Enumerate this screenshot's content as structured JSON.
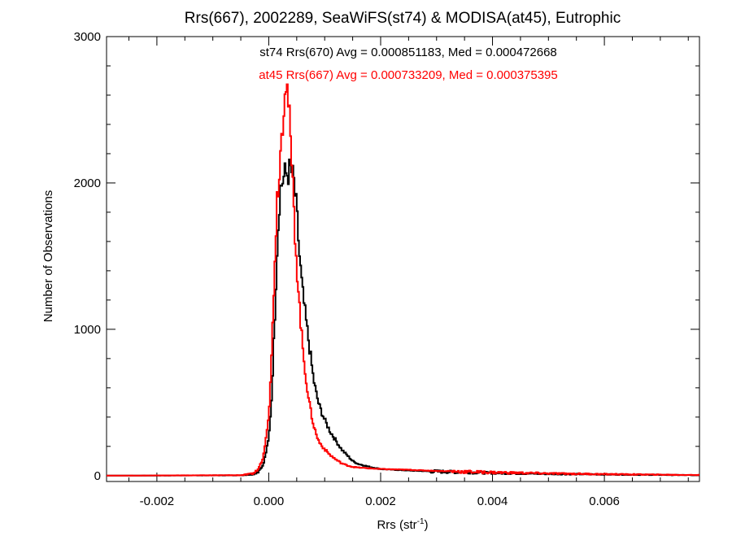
{
  "chart_data": {
    "type": "line",
    "style": "step-histogram",
    "title": "Rrs(667), 2002289, SeaWiFS(st74) & MODISA(at45), Eutrophic",
    "xlabel": "Rrs (str",
    "xlabel_superscript": "-1",
    "xlabel_suffix": ")",
    "ylabel": "Number of Observations",
    "xlim": [
      -0.0029,
      0.0077
    ],
    "ylim": [
      -40,
      3000
    ],
    "x_ticks": [
      {
        "value": -0.002,
        "label": "-0.002"
      },
      {
        "value": 0.0,
        "label": "0.000"
      },
      {
        "value": 0.002,
        "label": "0.002"
      },
      {
        "value": 0.004,
        "label": "0.004"
      },
      {
        "value": 0.006,
        "label": "0.006"
      }
    ],
    "y_ticks": [
      {
        "value": 0,
        "label": "0"
      },
      {
        "value": 1000,
        "label": "1000"
      },
      {
        "value": 2000,
        "label": "2000"
      },
      {
        "value": 3000,
        "label": "3000"
      }
    ],
    "grid": false,
    "legend_position": "top-center",
    "series": [
      {
        "name": "st74",
        "color": "#000000",
        "stats_text": "st74 Rrs(670) Avg = 0.000851183, Med = 0.000472668",
        "x": [
          -0.0029,
          -0.0005,
          -0.0003,
          -0.0002,
          -0.0001,
          0.0,
          5e-05,
          0.0001,
          0.00015,
          0.0002,
          0.00025,
          0.0003,
          0.00035,
          0.0004,
          0.00045,
          0.0005,
          0.00055,
          0.0006,
          0.00065,
          0.0007,
          0.00075,
          0.0008,
          0.00085,
          0.0009,
          0.001,
          0.0011,
          0.0012,
          0.0013,
          0.0014,
          0.0015,
          0.0016,
          0.0018,
          0.002,
          0.0025,
          0.003,
          0.004,
          0.005,
          0.006,
          0.0077
        ],
        "y": [
          0,
          2,
          8,
          25,
          70,
          250,
          520,
          1000,
          1550,
          1950,
          2020,
          2060,
          2070,
          2090,
          2000,
          1800,
          1500,
          1270,
          1110,
          960,
          810,
          660,
          560,
          480,
          380,
          300,
          240,
          180,
          140,
          100,
          80,
          60,
          45,
          35,
          28,
          18,
          12,
          8,
          3
        ]
      },
      {
        "name": "at45",
        "color": "#ff0000",
        "stats_text": "at45 Rrs(667) Avg = 0.000733209, Med = 0.000375395",
        "x": [
          -0.0029,
          -0.0005,
          -0.0003,
          -0.0002,
          -0.0001,
          0.0,
          5e-05,
          0.0001,
          0.00015,
          0.0002,
          0.00025,
          0.0003,
          0.00035,
          0.0004,
          0.00045,
          0.0005,
          0.00055,
          0.0006,
          0.00065,
          0.0007,
          0.00075,
          0.0008,
          0.00085,
          0.0009,
          0.001,
          0.0011,
          0.0012,
          0.0013,
          0.0014,
          0.0015,
          0.0016,
          0.0018,
          0.002,
          0.0025,
          0.003,
          0.004,
          0.005,
          0.006,
          0.0077
        ],
        "y": [
          0,
          3,
          12,
          35,
          120,
          420,
          800,
          1400,
          1900,
          2150,
          2450,
          2760,
          2560,
          2200,
          1800,
          1450,
          1150,
          900,
          720,
          560,
          440,
          350,
          280,
          230,
          180,
          140,
          110,
          85,
          70,
          60,
          55,
          50,
          45,
          40,
          32,
          22,
          15,
          10,
          4
        ]
      }
    ]
  }
}
